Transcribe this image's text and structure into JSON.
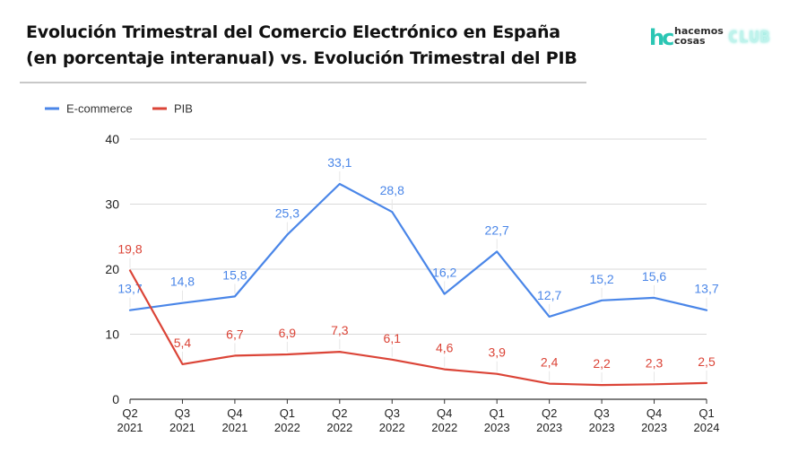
{
  "header": {
    "title_line1": "Evolución Trimestral del Comercio Electrónico en España",
    "title_line2": "(en porcentaje interanual) vs. Evolución Trimestral del PIB"
  },
  "logo": {
    "mark": "hc",
    "word1": "hacemos",
    "word2": "cosas",
    "club": "CLUB"
  },
  "chart_data": {
    "type": "line",
    "categories": [
      [
        "Q2",
        "2021"
      ],
      [
        "Q3",
        "2021"
      ],
      [
        "Q4",
        "2021"
      ],
      [
        "Q1",
        "2022"
      ],
      [
        "Q2",
        "2022"
      ],
      [
        "Q3",
        "2022"
      ],
      [
        "Q4",
        "2022"
      ],
      [
        "Q1",
        "2023"
      ],
      [
        "Q2",
        "2023"
      ],
      [
        "Q3",
        "2023"
      ],
      [
        "Q4",
        "2023"
      ],
      [
        "Q1",
        "2024"
      ]
    ],
    "series": [
      {
        "name": "E-commerce",
        "color": "#4a86e8",
        "values": [
          13.7,
          14.8,
          15.8,
          25.3,
          33.1,
          28.8,
          16.2,
          22.7,
          12.7,
          15.2,
          15.6,
          13.7
        ],
        "labels": [
          "13,7",
          "14,8",
          "15,8",
          "25,3",
          "33,1",
          "28,8",
          "16,2",
          "22,7",
          "12,7",
          "15,2",
          "15,6",
          "13,7"
        ]
      },
      {
        "name": "PIB",
        "color": "#db4437",
        "values": [
          19.8,
          5.4,
          6.7,
          6.9,
          7.3,
          6.1,
          4.6,
          3.9,
          2.4,
          2.2,
          2.3,
          2.5
        ],
        "labels": [
          "19,8",
          "5,4",
          "6,7",
          "6,9",
          "7,3",
          "6,1",
          "4,6",
          "3,9",
          "2,4",
          "2,2",
          "2,3",
          "2,5"
        ]
      }
    ],
    "ylim": [
      0,
      40
    ],
    "yticks": [
      0,
      10,
      20,
      30,
      40
    ],
    "grid": true,
    "legend": "top-left",
    "title": "",
    "xlabel": "",
    "ylabel": ""
  }
}
